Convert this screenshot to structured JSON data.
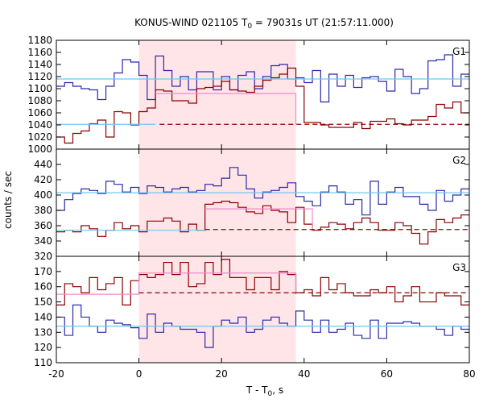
{
  "chart_data": {
    "type": "line",
    "title": "KONUS-WIND 021105 T",
    "title_sub": "0",
    "title_rest": " = 79031s UT (21:57:11.000)",
    "xlabel": "T - T",
    "xlabel_sub": "0",
    "xlabel_rest": ", s",
    "ylabel": "counts / sec",
    "xlim": [
      -20,
      80
    ],
    "xticks": [
      -20,
      0,
      20,
      40,
      60,
      80
    ],
    "xtick_labels": [
      "-20",
      "0",
      "20",
      "40",
      "60",
      "80"
    ],
    "shaded_interval": [
      0,
      38
    ],
    "colors": {
      "blue": "#2b2ba8",
      "red": "#8b0000",
      "cyan": "#6ec8f0",
      "pink": "#f08ac8",
      "shade": "#ffe4e8"
    },
    "panels": [
      {
        "name": "G1",
        "ylim": [
          1000,
          1180
        ],
        "yticks": [
          1000,
          1020,
          1040,
          1060,
          1080,
          1100,
          1120,
          1140,
          1160,
          1180
        ],
        "ytick_labels": [
          "1000",
          "1020",
          "1040",
          "1060",
          "1080",
          "1100",
          "1120",
          "1140",
          "1160",
          "1180"
        ],
        "series": [
          {
            "color": "blue",
            "style": "step",
            "x": [
              -20,
              -18,
              -16,
              -14,
              -12,
              -10,
              -8,
              -6,
              -4,
              -2,
              0,
              2,
              4,
              6,
              8,
              10,
              12,
              14,
              16,
              18,
              20,
              22,
              24,
              26,
              28,
              30,
              32,
              34,
              36,
              38,
              40,
              42,
              44,
              46,
              48,
              50,
              52,
              54,
              56,
              58,
              60,
              62,
              64,
              66,
              68,
              70,
              72,
              74,
              76,
              78,
              80
            ],
            "y": [
              1104,
              1110,
              1104,
              1100,
              1098,
              1082,
              1104,
              1126,
              1148,
              1144,
              1122,
              1082,
              1154,
              1130,
              1104,
              1120,
              1098,
              1128,
              1128,
              1098,
              1120,
              1098,
              1122,
              1128,
              1100,
              1120,
              1138,
              1140,
              1116,
              1118,
              1110,
              1130,
              1078,
              1124,
              1104,
              1122,
              1102,
              1118,
              1120,
              1112,
              1096,
              1132,
              1120,
              1092,
              1100,
              1146,
              1148,
              1156,
              1104,
              1124,
              1124
            ]
          },
          {
            "color": "red",
            "style": "step",
            "x": [
              -20,
              -18,
              -16,
              -14,
              -12,
              -10,
              -8,
              -6,
              -4,
              -2,
              0,
              2,
              4,
              6,
              8,
              10,
              12,
              14,
              16,
              18,
              20,
              22,
              24,
              26,
              28,
              30,
              32,
              34,
              36,
              38,
              40,
              42,
              44,
              46,
              48,
              50,
              52,
              54,
              56,
              58,
              60,
              62,
              64,
              66,
              68,
              70,
              72,
              74,
              76,
              78,
              80
            ],
            "y": [
              1020,
              1010,
              1026,
              1030,
              1042,
              1048,
              1020,
              1062,
              1060,
              1040,
              1062,
              1068,
              1098,
              1096,
              1080,
              1080,
              1076,
              1100,
              1102,
              1104,
              1112,
              1098,
              1096,
              1094,
              1104,
              1114,
              1118,
              1124,
              1134,
              1104,
              1044,
              1044,
              1040,
              1036,
              1036,
              1036,
              1044,
              1034,
              1046,
              1046,
              1050,
              1042,
              1040,
              1048,
              1048,
              1054,
              1074,
              1068,
              1078,
              1060,
              1060
            ]
          },
          {
            "color": "cyan",
            "style": "line",
            "x": [
              -20,
              80
            ],
            "y": [
              1116,
              1116
            ]
          },
          {
            "color": "cyan",
            "style": "line",
            "x": [
              -20,
              4
            ],
            "y": [
              1041,
              1041
            ]
          },
          {
            "color": "pink",
            "style": "line",
            "x": [
              4,
              38,
              38
            ],
            "y": [
              1092,
              1092,
              1041
            ]
          },
          {
            "color": "red",
            "style": "dashed",
            "x": [
              5,
              80
            ],
            "y": [
              1041,
              1041
            ]
          }
        ]
      },
      {
        "name": "G2",
        "ylim": [
          320,
          460
        ],
        "yticks": [
          320,
          340,
          360,
          380,
          400,
          420,
          440
        ],
        "ytick_labels": [
          "320",
          "340",
          "360",
          "380",
          "400",
          "420",
          "440"
        ],
        "series": [
          {
            "color": "blue",
            "style": "step",
            "x": [
              -20,
              -18,
              -16,
              -14,
              -12,
              -10,
              -8,
              -6,
              -4,
              -2,
              0,
              2,
              4,
              6,
              8,
              10,
              12,
              14,
              16,
              18,
              20,
              22,
              24,
              26,
              28,
              30,
              32,
              34,
              36,
              38,
              40,
              42,
              44,
              46,
              48,
              50,
              52,
              54,
              56,
              58,
              60,
              62,
              64,
              66,
              68,
              70,
              72,
              74,
              76,
              78,
              80
            ],
            "y": [
              380,
              394,
              402,
              408,
              406,
              402,
              418,
              414,
              404,
              410,
              402,
              412,
              410,
              404,
              408,
              410,
              404,
              406,
              414,
              412,
              422,
              436,
              426,
              408,
              396,
              404,
              406,
              410,
              416,
              398,
              392,
              386,
              404,
              412,
              404,
              388,
              394,
              374,
              418,
              388,
              404,
              410,
              398,
              398,
              388,
              380,
              406,
              392,
              400,
              408,
              408
            ]
          },
          {
            "color": "red",
            "style": "step",
            "x": [
              -20,
              -18,
              -16,
              -14,
              -12,
              -10,
              -8,
              -6,
              -4,
              -2,
              0,
              2,
              4,
              6,
              8,
              10,
              12,
              14,
              16,
              18,
              20,
              22,
              24,
              26,
              28,
              30,
              32,
              34,
              36,
              38,
              40,
              42,
              44,
              46,
              48,
              50,
              52,
              54,
              56,
              58,
              60,
              62,
              64,
              66,
              68,
              70,
              72,
              74,
              76,
              78,
              80
            ],
            "y": [
              352,
              354,
              352,
              360,
              356,
              346,
              354,
              364,
              356,
              360,
              352,
              366,
              366,
              370,
              366,
              352,
              362,
              354,
              388,
              390,
              392,
              390,
              384,
              378,
              376,
              386,
              380,
              378,
              364,
              384,
              362,
              354,
              358,
              364,
              362,
              356,
              364,
              370,
              364,
              354,
              354,
              364,
              360,
              350,
              336,
              352,
              368,
              364,
              370,
              374,
              374
            ]
          },
          {
            "color": "cyan",
            "style": "line",
            "x": [
              -20,
              80
            ],
            "y": [
              403,
              403
            ]
          },
          {
            "color": "cyan",
            "style": "line",
            "x": [
              -20,
              16
            ],
            "y": [
              354,
              354
            ]
          },
          {
            "color": "pink",
            "style": "line",
            "x": [
              16,
              42,
              42
            ],
            "y": [
              382,
              382,
              354
            ]
          },
          {
            "color": "red",
            "style": "dashed",
            "x": [
              16,
              80
            ],
            "y": [
              355,
              355
            ]
          }
        ]
      },
      {
        "name": "G3",
        "ylim": [
          110,
          180
        ],
        "yticks": [
          110,
          120,
          130,
          140,
          150,
          160,
          170
        ],
        "ytick_labels": [
          "110",
          "120",
          "130",
          "140",
          "150",
          "160",
          "170"
        ],
        "series": [
          {
            "color": "blue",
            "style": "step",
            "x": [
              -20,
              -18,
              -16,
              -14,
              -12,
              -10,
              -8,
              -6,
              -4,
              -2,
              0,
              2,
              4,
              6,
              8,
              10,
              12,
              14,
              16,
              18,
              20,
              22,
              24,
              26,
              28,
              30,
              32,
              34,
              36,
              38,
              40,
              42,
              44,
              46,
              48,
              50,
              52,
              54,
              56,
              58,
              60,
              62,
              64,
              66,
              68,
              70,
              72,
              74,
              76,
              78,
              80
            ],
            "y": [
              140,
              128,
              148,
              140,
              134,
              130,
              138,
              136,
              135,
              133,
              126,
              142,
              130,
              136,
              134,
              132,
              132,
              130,
              120,
              134,
              138,
              136,
              140,
              130,
              132,
              138,
              140,
              136,
              134,
              144,
              138,
              130,
              138,
              130,
              132,
              136,
              128,
              126,
              138,
              126,
              136,
              136,
              137,
              136,
              134,
              134,
              132,
              128,
              134,
              132,
              132
            ]
          },
          {
            "color": "red",
            "style": "step",
            "x": [
              -20,
              -18,
              -16,
              -14,
              -12,
              -10,
              -8,
              -6,
              -4,
              -2,
              0,
              2,
              4,
              6,
              8,
              10,
              12,
              14,
              16,
              18,
              20,
              22,
              24,
              26,
              28,
              30,
              32,
              34,
              36,
              38,
              40,
              42,
              44,
              46,
              48,
              50,
              52,
              54,
              56,
              58,
              60,
              62,
              64,
              66,
              68,
              70,
              72,
              74,
              76,
              78,
              80
            ],
            "y": [
              148,
              162,
              160,
              156,
              166,
              158,
              162,
              166,
              148,
              164,
              168,
              166,
              168,
              176,
              168,
              176,
              160,
              162,
              176,
              168,
              178,
              166,
              166,
              158,
              166,
              166,
              158,
              170,
              168,
              156,
              158,
              154,
              166,
              158,
              162,
              156,
              154,
              154,
              158,
              156,
              160,
              150,
              154,
              160,
              150,
              150,
              156,
              154,
              154,
              148,
              148
            ]
          },
          {
            "color": "cyan",
            "style": "line",
            "x": [
              -20,
              80
            ],
            "y": [
              134,
              134
            ]
          },
          {
            "color": "pink",
            "style": "line",
            "x": [
              -20,
              0,
              0,
              38,
              38
            ],
            "y": [
              155,
              155,
              169,
              169,
              155
            ]
          },
          {
            "color": "red",
            "style": "dashed",
            "x": [
              0,
              80
            ],
            "y": [
              156,
              156
            ]
          }
        ]
      }
    ]
  }
}
